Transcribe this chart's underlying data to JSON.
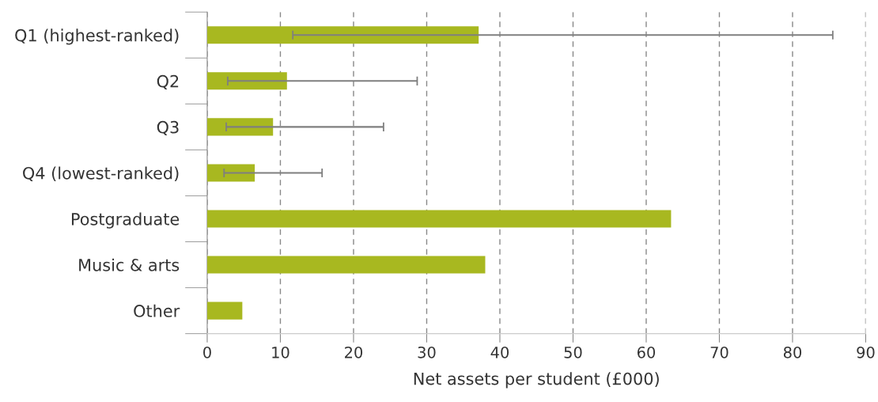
{
  "chart_data": {
    "type": "bar",
    "orientation": "horizontal",
    "xlabel": "Net assets per student (£000)",
    "categories": [
      "Q1 (highest-ranked)",
      "Q2",
      "Q3",
      "Q4 (lowest-ranked)",
      "Postgraduate",
      "Music & arts",
      "Other"
    ],
    "values": [
      37.1,
      10.9,
      9.0,
      6.5,
      63.4,
      38.0,
      4.8
    ],
    "errors": [
      [
        11.7,
        85.5
      ],
      [
        2.8,
        28.7
      ],
      [
        2.6,
        24.1
      ],
      [
        2.3,
        15.7
      ],
      null,
      null,
      null
    ],
    "color": "#a8b820",
    "xlim": [
      0,
      90
    ],
    "xticks": [
      0,
      10,
      20,
      30,
      40,
      50,
      60,
      70,
      80,
      90
    ],
    "grid": "x"
  }
}
